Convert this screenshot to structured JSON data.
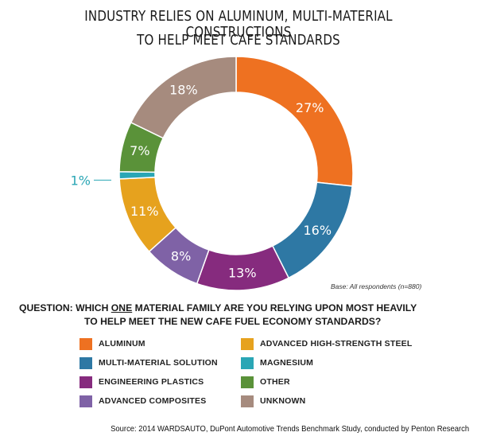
{
  "title_line1": "INDUSTRY RELIES ON ALUMINUM, MULTI-MATERIAL CONSTRUCTIONS",
  "title_line2": "TO HELP MEET CAFE STANDARDS",
  "base_note": "Base: All respondents (n=880)",
  "question": {
    "prefix": "QUESTION:  WHICH ",
    "emphasis": "ONE",
    "suffix": " MATERIAL FAMILY ARE YOU RELYING UPON MOST HEAVILY",
    "line2": "TO HELP MEET THE NEW CAFE FUEL ECONOMY STANDARDS?"
  },
  "source": "Source: 2014 WARDSAUTO, DuPont Automotive Trends Benchmark Study, conducted by Penton Research",
  "chart_data": {
    "type": "pie",
    "donut": true,
    "title": "INDUSTRY RELIES ON ALUMINUM, MULTI-MATERIAL CONSTRUCTIONS TO HELP MEET CAFE STANDARDS",
    "slices": [
      {
        "label": "ALUMINUM",
        "value": 27,
        "display": "27%",
        "color": "#ee7121"
      },
      {
        "label": "MULTI-MATERIAL SOLUTION",
        "value": 16,
        "display": "16%",
        "color": "#2e78a4"
      },
      {
        "label": "ENGINEERING PLASTICS",
        "value": 13,
        "display": "13%",
        "color": "#862b7e"
      },
      {
        "label": "ADVANCED COMPOSITES",
        "value": 8,
        "display": "8%",
        "color": "#7f62a6"
      },
      {
        "label": "ADVANCED HIGH-STRENGTH STEEL",
        "value": 11,
        "display": "11%",
        "color": "#e6a21e"
      },
      {
        "label": "MAGNESIUM",
        "value": 1,
        "display": "1%",
        "color": "#2aa6b5"
      },
      {
        "label": "OTHER",
        "value": 7,
        "display": "7%",
        "color": "#5a9239"
      },
      {
        "label": "UNKNOWN",
        "value": 18,
        "display": "18%",
        "color": "#a68b7e"
      }
    ],
    "legend_position": "bottom",
    "legend": [
      {
        "label": "ALUMINUM",
        "color": "#ee7121"
      },
      {
        "label": "ADVANCED HIGH-STRENGTH STEEL",
        "color": "#e6a21e"
      },
      {
        "label": "MULTI-MATERIAL SOLUTION",
        "color": "#2e78a4"
      },
      {
        "label": "MAGNESIUM",
        "color": "#2aa6b5"
      },
      {
        "label": "ENGINEERING PLASTICS",
        "color": "#862b7e"
      },
      {
        "label": "OTHER",
        "color": "#5a9239"
      },
      {
        "label": "ADVANCED COMPOSITES",
        "color": "#7f62a6"
      },
      {
        "label": "UNKNOWN",
        "color": "#a68b7e"
      }
    ]
  }
}
